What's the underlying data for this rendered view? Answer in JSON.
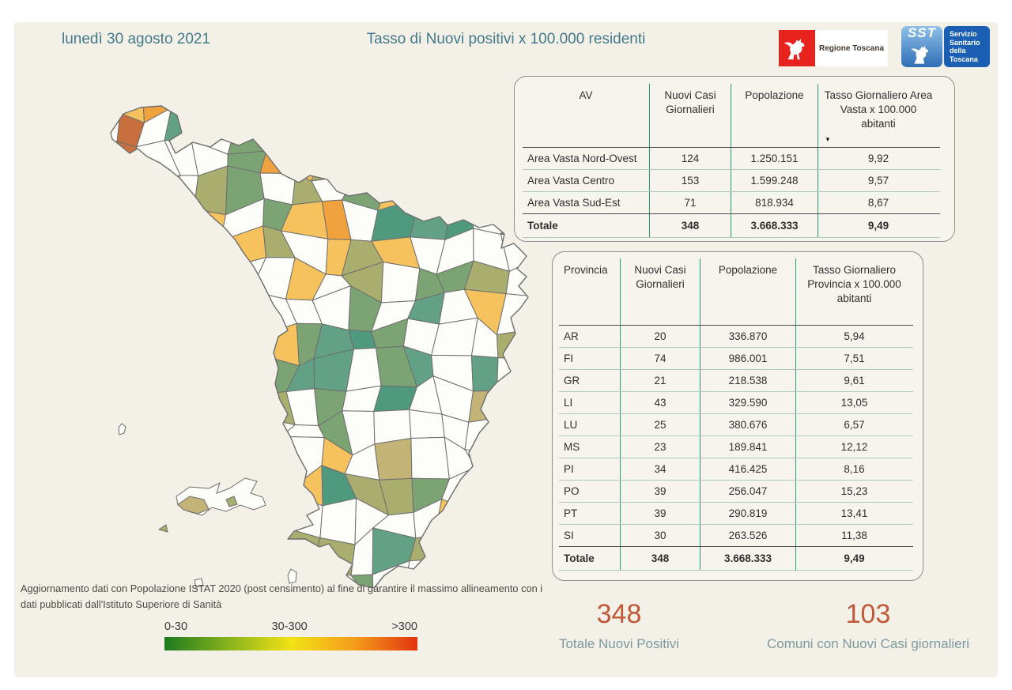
{
  "header": {
    "date": "lunedì 30 agosto 2021",
    "title": "Tasso di Nuovi positivi x 100.000 residenti",
    "logo_regione": {
      "label": "Regione Toscana"
    },
    "logo_sst": {
      "abbr": "SST",
      "label": "Servizio Sanitario della Toscana"
    }
  },
  "chart_data": [
    {
      "type": "table",
      "name": "area_vasta",
      "columns": [
        "AV",
        "Nuovi Casi Giornalieri",
        "Popolazione",
        "Tasso Giornaliero Area Vasta x 100.000 abitanti"
      ],
      "rows": [
        [
          "Area Vasta Nord-Ovest",
          "124",
          "1.250.151",
          "9,92"
        ],
        [
          "Area Vasta Centro",
          "153",
          "1.599.248",
          "9,57"
        ],
        [
          "Area Vasta Sud-Est",
          "71",
          "818.934",
          "8,67"
        ]
      ],
      "total": [
        "Totale",
        "348",
        "3.668.333",
        "9,49"
      ],
      "sort_indicator_column": 3
    },
    {
      "type": "table",
      "name": "province",
      "columns": [
        "Provincia",
        "Nuovi Casi Giornalieri",
        "Popolazione",
        "Tasso Giornaliero Provincia x 100.000 abitanti"
      ],
      "rows": [
        [
          "AR",
          "20",
          "336.870",
          "5,94"
        ],
        [
          "FI",
          "74",
          "986.001",
          "7,51"
        ],
        [
          "GR",
          "21",
          "218.538",
          "9,61"
        ],
        [
          "LI",
          "43",
          "329.590",
          "13,05"
        ],
        [
          "LU",
          "25",
          "380.676",
          "6,57"
        ],
        [
          "MS",
          "23",
          "189.841",
          "12,12"
        ],
        [
          "PI",
          "34",
          "416.425",
          "8,16"
        ],
        [
          "PO",
          "39",
          "256.047",
          "15,23"
        ],
        [
          "PT",
          "39",
          "290.819",
          "13,41"
        ],
        [
          "SI",
          "30",
          "263.526",
          "11,38"
        ]
      ],
      "total": [
        "Totale",
        "348",
        "3.668.333",
        "9,49"
      ]
    },
    {
      "type": "choropleth-map",
      "region": "Toscana",
      "metric": "Tasso di Nuovi positivi x 100.000 residenti",
      "legend_bins": [
        "0-30",
        "30-300",
        ">300"
      ],
      "palette": {
        "none": "#fdfdfa",
        "sage": "#a9ad6e",
        "tan": "#c3b377",
        "green": "#7ba374",
        "teal": "#63a187",
        "teal_dark": "#4f997e",
        "yellow": "#f6c25e",
        "orange": "#f0a23f",
        "terracotta": "#c7703e",
        "border": "#6e6e6e"
      }
    }
  ],
  "legend": {
    "labels": [
      "0-30",
      "30-300",
      ">300"
    ]
  },
  "kpis": [
    {
      "value": "348",
      "label": "Totale Nuovi Positivi"
    },
    {
      "value": "103",
      "label": "Comuni con Nuovi Casi giornalieri"
    }
  ],
  "footer_note": "Aggiornamento dati con Popolazione ISTAT 2020 (post censimento) al fine di garantire il massimo allineamento con i dati pubblicati dall'Istituto Superiore di Sanità",
  "colors": {
    "heading": "#44798a",
    "kpi_value": "#c0583a",
    "kpi_label": "#7d999f",
    "table_divider": "#2d9a7a",
    "background": "#f3f0e7"
  }
}
